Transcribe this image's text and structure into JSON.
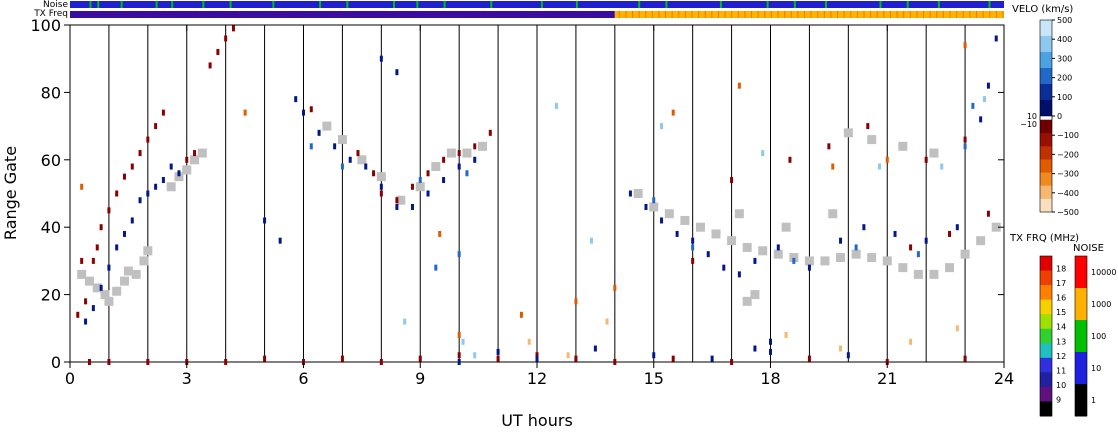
{
  "header": {
    "noise_label": "Noise",
    "txfreq_label": "TX Freq"
  },
  "chart_data": {
    "type": "scatter",
    "title": "",
    "xlabel": "UT hours",
    "ylabel": "Range Gate",
    "xlim": [
      0,
      24
    ],
    "ylim": [
      0,
      100
    ],
    "xticks": [
      0,
      3,
      6,
      9,
      12,
      15,
      18,
      21,
      24
    ],
    "yticks": [
      0,
      20,
      40,
      60,
      80,
      100
    ],
    "scan_boundaries_hours": [
      1,
      2,
      3,
      4,
      5,
      6,
      7,
      8,
      9,
      10,
      11,
      12,
      13,
      14,
      15,
      16,
      17,
      18,
      19,
      20,
      21,
      22,
      23
    ],
    "noise_bar": {
      "base_color": "#2020d0",
      "highlight_color": "#00c000"
    },
    "txfreq_bar": {
      "segments": [
        {
          "from": 0,
          "to": 14,
          "color": "#3b0ca0"
        },
        {
          "from": 14,
          "to": 24,
          "color": "#ffb400"
        }
      ]
    },
    "velocity_colorbar": {
      "title": "VELO (km/s)",
      "ticks": [
        "500",
        "400",
        "300",
        "200",
        "100",
        "0",
        "−100",
        "−200",
        "−300",
        "−400",
        "−500"
      ],
      "ten_labels": [
        "10",
        "−10"
      ],
      "positive_colors": [
        "#c8e6f8",
        "#8ec8ee",
        "#4aa2e0",
        "#2168c8",
        "#0a2e96",
        "#00106a"
      ],
      "negative_colors": [
        "#700000",
        "#9a1000",
        "#c03000",
        "#e05a00",
        "#f08a20",
        "#f6b870",
        "#fbe0c0"
      ]
    },
    "txfreq_colorbar": {
      "title": "TX FRQ (MHz)",
      "ticks": [
        "18",
        "17",
        "16",
        "15",
        "14",
        "13",
        "12",
        "11",
        "10",
        "9"
      ],
      "colors": [
        "#e00000",
        "#f04000",
        "#ff8000",
        "#f8d000",
        "#a0e000",
        "#30d030",
        "#20c0c0",
        "#3030e0",
        "#2020a0",
        "#601080",
        "#000000"
      ]
    },
    "noise_colorbar": {
      "title": "NOISE",
      "ticks": [
        "10000",
        "1000",
        "100",
        "10",
        "1"
      ],
      "colors": [
        "#ff0000",
        "#ffb000",
        "#00c000",
        "#2020e0",
        "#000000"
      ]
    },
    "colors": {
      "ground_scatter": "#c0c0c0",
      "negative_dark": "#8b0000",
      "positive_dark": "#00188a"
    },
    "scatter_groups": [
      {
        "name": "",
        "color": "#c0c0c0",
        "points": [
          [
            0.3,
            26
          ],
          [
            0.5,
            24
          ],
          [
            0.7,
            22
          ],
          [
            0.9,
            20
          ],
          [
            1.0,
            18
          ],
          [
            1.2,
            21
          ],
          [
            1.4,
            24
          ],
          [
            1.5,
            27
          ],
          [
            1.7,
            26
          ],
          [
            1.9,
            30
          ],
          [
            2.0,
            33
          ],
          [
            2.6,
            52
          ],
          [
            2.8,
            55
          ],
          [
            3.0,
            57
          ],
          [
            3.2,
            60
          ],
          [
            3.4,
            62
          ],
          [
            6.6,
            70
          ],
          [
            7.0,
            66
          ],
          [
            7.5,
            60
          ],
          [
            8.0,
            55
          ],
          [
            8.5,
            48
          ],
          [
            9.0,
            52
          ],
          [
            9.4,
            58
          ],
          [
            9.8,
            62
          ],
          [
            10.2,
            62
          ],
          [
            10.6,
            64
          ],
          [
            14.6,
            50
          ],
          [
            15.0,
            46
          ],
          [
            15.4,
            44
          ],
          [
            15.8,
            42
          ],
          [
            16.2,
            40
          ],
          [
            16.6,
            38
          ],
          [
            17.0,
            36
          ],
          [
            17.4,
            34
          ],
          [
            17.8,
            33
          ],
          [
            18.2,
            32
          ],
          [
            18.6,
            31
          ],
          [
            19.0,
            30
          ],
          [
            19.4,
            30
          ],
          [
            19.8,
            31
          ],
          [
            20.2,
            32
          ],
          [
            20.6,
            31
          ],
          [
            21.0,
            30
          ],
          [
            21.4,
            28
          ],
          [
            21.8,
            26
          ],
          [
            22.2,
            26
          ],
          [
            22.6,
            28
          ],
          [
            23.0,
            32
          ],
          [
            23.4,
            36
          ],
          [
            23.8,
            40
          ],
          [
            17.4,
            18
          ],
          [
            17.6,
            20
          ],
          [
            20.0,
            68
          ],
          [
            20.6,
            66
          ],
          [
            21.4,
            64
          ],
          [
            22.2,
            62
          ],
          [
            17.2,
            44
          ],
          [
            18.4,
            40
          ],
          [
            19.6,
            44
          ]
        ]
      },
      {
        "name": "",
        "color": "#8b0000",
        "points": [
          [
            0.2,
            14
          ],
          [
            0.4,
            18
          ],
          [
            0.6,
            30
          ],
          [
            0.8,
            40
          ],
          [
            1.0,
            45
          ],
          [
            1.2,
            50
          ],
          [
            1.4,
            55
          ],
          [
            1.6,
            58
          ],
          [
            1.8,
            62
          ],
          [
            2.0,
            66
          ],
          [
            2.2,
            70
          ],
          [
            2.4,
            74
          ],
          [
            3.6,
            88
          ],
          [
            3.8,
            92
          ],
          [
            4.0,
            96
          ],
          [
            4.2,
            99
          ],
          [
            3.0,
            60
          ],
          [
            3.2,
            62
          ],
          [
            8.0,
            50
          ],
          [
            8.4,
            48
          ],
          [
            8.8,
            52
          ],
          [
            9.2,
            56
          ],
          [
            9.6,
            60
          ],
          [
            10.0,
            62
          ],
          [
            10.4,
            64
          ],
          [
            10.8,
            68
          ],
          [
            6.2,
            75
          ],
          [
            7.4,
            62
          ],
          [
            7.8,
            56
          ],
          [
            0.5,
            0
          ],
          [
            1.0,
            0
          ],
          [
            2.0,
            0
          ],
          [
            3.0,
            0
          ],
          [
            4.0,
            0
          ],
          [
            5.0,
            1
          ],
          [
            6.0,
            0
          ],
          [
            7.0,
            1
          ],
          [
            8.0,
            0
          ],
          [
            9.0,
            1
          ],
          [
            10.0,
            2
          ],
          [
            11.0,
            1
          ],
          [
            12.0,
            2
          ],
          [
            13.0,
            1
          ],
          [
            14.0,
            0
          ],
          [
            15.5,
            1
          ],
          [
            17.0,
            0
          ],
          [
            19.0,
            1
          ],
          [
            21.0,
            0
          ],
          [
            23.0,
            1
          ],
          [
            18.5,
            60
          ],
          [
            19.5,
            64
          ],
          [
            20.5,
            70
          ],
          [
            22.0,
            60
          ],
          [
            23.0,
            66
          ],
          [
            21.6,
            34
          ],
          [
            22.6,
            38
          ],
          [
            23.6,
            44
          ],
          [
            16.0,
            30
          ],
          [
            17.0,
            54
          ],
          [
            0.3,
            30
          ],
          [
            0.7,
            34
          ]
        ]
      },
      {
        "name": "",
        "color": "#00188a",
        "points": [
          [
            0.4,
            12
          ],
          [
            0.6,
            16
          ],
          [
            0.8,
            22
          ],
          [
            1.0,
            28
          ],
          [
            1.2,
            34
          ],
          [
            1.4,
            38
          ],
          [
            1.6,
            42
          ],
          [
            1.8,
            48
          ],
          [
            2.0,
            50
          ],
          [
            2.2,
            52
          ],
          [
            2.4,
            54
          ],
          [
            2.6,
            58
          ],
          [
            2.8,
            56
          ],
          [
            5.0,
            42
          ],
          [
            5.4,
            36
          ],
          [
            5.8,
            78
          ],
          [
            6.0,
            74
          ],
          [
            6.4,
            68
          ],
          [
            6.8,
            64
          ],
          [
            7.2,
            60
          ],
          [
            7.6,
            58
          ],
          [
            8.0,
            52
          ],
          [
            8.4,
            46
          ],
          [
            8.8,
            46
          ],
          [
            9.2,
            50
          ],
          [
            9.6,
            54
          ],
          [
            10.0,
            58
          ],
          [
            10.4,
            60
          ],
          [
            8.0,
            90
          ],
          [
            8.4,
            86
          ],
          [
            14.4,
            50
          ],
          [
            14.8,
            46
          ],
          [
            15.2,
            42
          ],
          [
            15.6,
            38
          ],
          [
            16.0,
            36
          ],
          [
            16.4,
            32
          ],
          [
            16.8,
            28
          ],
          [
            17.2,
            26
          ],
          [
            17.6,
            30
          ],
          [
            18.2,
            34
          ],
          [
            19.0,
            28
          ],
          [
            19.8,
            36
          ],
          [
            20.4,
            40
          ],
          [
            21.2,
            38
          ],
          [
            22.0,
            36
          ],
          [
            22.8,
            40
          ],
          [
            23.4,
            72
          ],
          [
            23.6,
            82
          ],
          [
            23.8,
            96
          ],
          [
            10.0,
            0
          ],
          [
            11.0,
            3
          ],
          [
            12.0,
            1
          ],
          [
            13.5,
            4
          ],
          [
            15.0,
            2
          ],
          [
            16.5,
            1
          ],
          [
            18.0,
            3
          ],
          [
            20.0,
            2
          ],
          [
            17.6,
            4
          ],
          [
            18.0,
            6
          ]
        ]
      },
      {
        "name": "",
        "color": "#2168c8",
        "points": [
          [
            6.2,
            64
          ],
          [
            7.0,
            58
          ],
          [
            9.0,
            54
          ],
          [
            10.2,
            56
          ],
          [
            15.0,
            48
          ],
          [
            16.0,
            34
          ],
          [
            18.6,
            30
          ],
          [
            20.2,
            34
          ],
          [
            21.8,
            32
          ],
          [
            23.2,
            76
          ],
          [
            23.0,
            64
          ],
          [
            10.0,
            32
          ],
          [
            9.4,
            28
          ]
        ]
      },
      {
        "name": "",
        "color": "#8ec8ee",
        "points": [
          [
            10.4,
            2
          ],
          [
            12.5,
            76
          ],
          [
            15.2,
            70
          ],
          [
            17.8,
            62
          ],
          [
            20.8,
            58
          ],
          [
            22.4,
            58
          ],
          [
            23.5,
            78
          ],
          [
            13.4,
            36
          ],
          [
            8.6,
            12
          ],
          [
            10.1,
            6
          ]
        ]
      },
      {
        "name": "",
        "color": "#e05a00",
        "points": [
          [
            10.0,
            8
          ],
          [
            13.0,
            18
          ],
          [
            14.0,
            22
          ],
          [
            15.5,
            74
          ],
          [
            17.2,
            82
          ],
          [
            19.6,
            58
          ],
          [
            21.0,
            60
          ],
          [
            23.0,
            94
          ],
          [
            4.5,
            74
          ],
          [
            0.3,
            52
          ],
          [
            9.5,
            38
          ],
          [
            11.6,
            14
          ]
        ]
      },
      {
        "name": "",
        "color": "#f6b870",
        "points": [
          [
            11.8,
            6
          ],
          [
            13.8,
            12
          ],
          [
            18.4,
            8
          ],
          [
            19.8,
            4
          ],
          [
            21.6,
            6
          ],
          [
            22.8,
            10
          ],
          [
            12.8,
            2
          ]
        ]
      }
    ]
  }
}
